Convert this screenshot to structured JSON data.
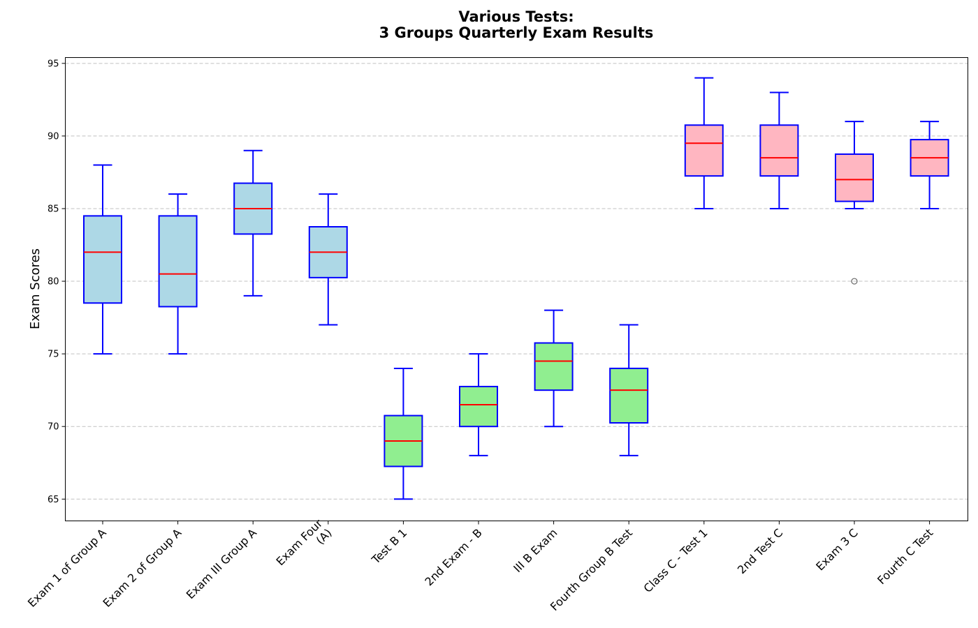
{
  "chart_data": {
    "type": "box",
    "title_lines": [
      "Various Tests:",
      "3 Groups Quarterly Exam Results"
    ],
    "xlabel": "",
    "ylabel": "Exam Scores",
    "ylim": [
      63.5,
      95.4
    ],
    "yticks": [
      65,
      70,
      75,
      80,
      85,
      90,
      95
    ],
    "grid": "y-dashed",
    "colors": {
      "box_edge": "#0000ff",
      "whisker": "#0000ff",
      "median": "#ff0000",
      "outlier": "#666666",
      "group_a_fill": "#add8e6",
      "group_b_fill": "#90ee90",
      "group_c_fill": "#ffb6c1"
    },
    "categories": [
      {
        "label": [
          "Exam 1 of Group A"
        ],
        "group": "A",
        "whislo": 75,
        "q1": 78.5,
        "median": 82,
        "q3": 84.5,
        "whishi": 88,
        "outliers": []
      },
      {
        "label": [
          "Exam 2 of Group A"
        ],
        "group": "A",
        "whislo": 75,
        "q1": 78.25,
        "median": 80.5,
        "q3": 84.5,
        "whishi": 86,
        "outliers": []
      },
      {
        "label": [
          "Exam III Group A"
        ],
        "group": "A",
        "whislo": 79,
        "q1": 83.25,
        "median": 85,
        "q3": 86.75,
        "whishi": 89,
        "outliers": []
      },
      {
        "label": [
          "Exam Four",
          "(A)"
        ],
        "group": "A",
        "whislo": 77,
        "q1": 80.25,
        "median": 82,
        "q3": 83.75,
        "whishi": 86,
        "outliers": []
      },
      {
        "label": [
          "Test B 1"
        ],
        "group": "B",
        "whislo": 65,
        "q1": 67.25,
        "median": 69,
        "q3": 70.75,
        "whishi": 74,
        "outliers": []
      },
      {
        "label": [
          "2nd Exam - B"
        ],
        "group": "B",
        "whislo": 68,
        "q1": 70,
        "median": 71.5,
        "q3": 72.75,
        "whishi": 75,
        "outliers": []
      },
      {
        "label": [
          "III B Exam"
        ],
        "group": "B",
        "whislo": 70,
        "q1": 72.5,
        "median": 74.5,
        "q3": 75.75,
        "whishi": 78,
        "outliers": []
      },
      {
        "label": [
          "Fourth Group B Test"
        ],
        "group": "B",
        "whislo": 68,
        "q1": 70.25,
        "median": 72.5,
        "q3": 74,
        "whishi": 77,
        "outliers": []
      },
      {
        "label": [
          "Class C - Test 1"
        ],
        "group": "C",
        "whislo": 85,
        "q1": 87.25,
        "median": 89.5,
        "q3": 90.75,
        "whishi": 94,
        "outliers": []
      },
      {
        "label": [
          "2nd Test C"
        ],
        "group": "C",
        "whislo": 85,
        "q1": 87.25,
        "median": 88.5,
        "q3": 90.75,
        "whishi": 93,
        "outliers": []
      },
      {
        "label": [
          "Exam 3 C"
        ],
        "group": "C",
        "whislo": 85,
        "q1": 85.5,
        "median": 87,
        "q3": 88.75,
        "whishi": 91,
        "outliers": [
          80
        ]
      },
      {
        "label": [
          "Fourth C Test"
        ],
        "group": "C",
        "whislo": 85,
        "q1": 87.25,
        "median": 88.5,
        "q3": 89.75,
        "whishi": 91,
        "outliers": []
      }
    ]
  }
}
